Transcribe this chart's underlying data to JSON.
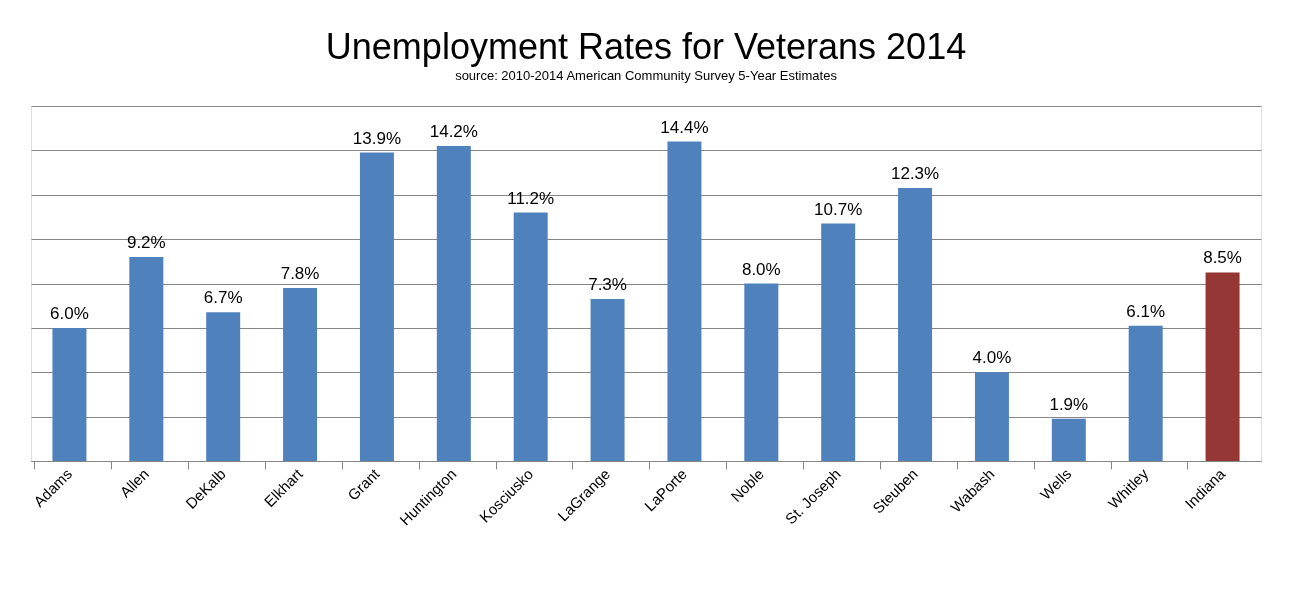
{
  "chart_data": {
    "type": "bar",
    "title": "Unemployment Rates for Veterans 2014",
    "subtitle": "source: 2010-2014 American Community Survey 5-Year Estimates",
    "categories": [
      "Adams",
      "Allen",
      "DeKalb",
      "Elkhart",
      "Grant",
      "Huntington",
      "Kosciusko",
      "LaGrange",
      "LaPorte",
      "Noble",
      "St. Joseph",
      "Steuben",
      "Wabash",
      "Wells",
      "Whitley",
      "Indiana"
    ],
    "values": [
      6.0,
      9.2,
      6.7,
      7.8,
      13.9,
      14.2,
      11.2,
      7.3,
      14.4,
      8.0,
      10.7,
      12.3,
      4.0,
      1.9,
      6.1,
      8.5
    ],
    "value_labels": [
      "6.0%",
      "9.2%",
      "6.7%",
      "7.8%",
      "13.9%",
      "14.2%",
      "11.2%",
      "7.3%",
      "14.4%",
      "8.0%",
      "10.7%",
      "12.3%",
      "4.0%",
      "1.9%",
      "6.1%",
      "8.5%"
    ],
    "colors": [
      "#4f81bd",
      "#4f81bd",
      "#4f81bd",
      "#4f81bd",
      "#4f81bd",
      "#4f81bd",
      "#4f81bd",
      "#4f81bd",
      "#4f81bd",
      "#4f81bd",
      "#4f81bd",
      "#4f81bd",
      "#4f81bd",
      "#4f81bd",
      "#4f81bd",
      "#953735"
    ],
    "ylim": [
      0,
      16
    ],
    "yticks": [
      {
        "value": 0,
        "label": null
      },
      {
        "value": 2,
        "label": null
      },
      {
        "value": 4,
        "label": null
      },
      {
        "value": 6,
        "label": null
      },
      {
        "value": 8,
        "label": null
      },
      {
        "value": 10,
        "label": null
      },
      {
        "value": 12,
        "label": null
      },
      {
        "value": 14,
        "label": null
      },
      {
        "value": 16,
        "label": null
      }
    ],
    "grid": "y",
    "tick_labels": "x"
  }
}
